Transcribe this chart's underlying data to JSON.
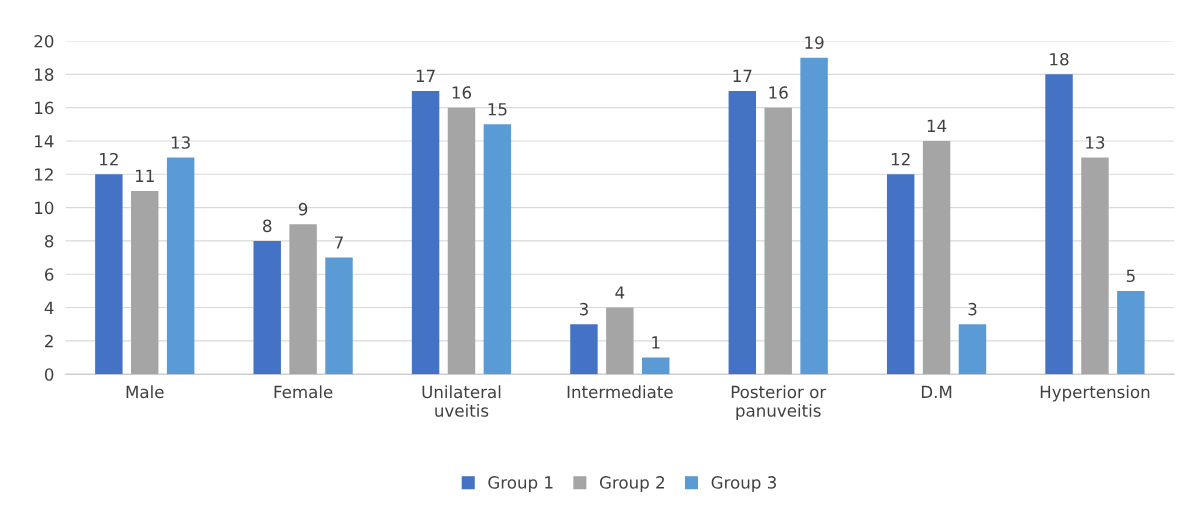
{
  "chart_data": {
    "type": "bar",
    "categories": [
      "Male",
      "Female",
      "Unilateral\nuveitis",
      "Intermediate",
      "Posterior or\npanuveitis",
      "D.M",
      "Hypertension"
    ],
    "series": [
      {
        "name": "Group 1",
        "color": "#4472c4",
        "values": [
          12,
          8,
          17,
          3,
          17,
          12,
          18
        ]
      },
      {
        "name": "Group 2",
        "color": "#a5a5a5",
        "values": [
          11,
          9,
          16,
          4,
          16,
          14,
          13
        ]
      },
      {
        "name": "Group 3",
        "color": "#5b9bd5",
        "values": [
          13,
          7,
          15,
          1,
          19,
          3,
          5
        ]
      }
    ],
    "ylim": [
      0,
      20
    ],
    "yticks": [
      0,
      2,
      4,
      6,
      8,
      10,
      12,
      14,
      16,
      18,
      20
    ],
    "grid": "y",
    "legend": "bottom",
    "data_labels": true
  }
}
